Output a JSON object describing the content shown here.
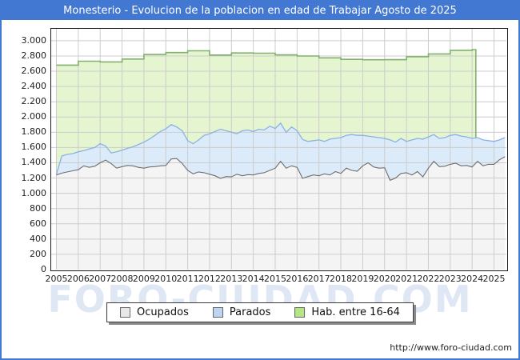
{
  "header": {
    "title": "Monesterio - Evolucion de la poblacion en edad de Trabajar Agosto de 2025"
  },
  "watermark": "FORO-CIUDAD.COM",
  "footer": {
    "url": "http://www.foro-ciudad.com"
  },
  "colors": {
    "frame_border": "#4378d2",
    "titlebar_bg": "#4378d2",
    "titlebar_text": "#ffffff",
    "grid": "#cccccc",
    "plot_border": "#1a1a1a",
    "watermark": "#dfe7f4"
  },
  "legend": {
    "items": [
      {
        "label": "Ocupados",
        "swatch_fill": "#e8e8e8",
        "swatch_border": "#666666"
      },
      {
        "label": "Parados",
        "swatch_fill": "#bcd6f2",
        "swatch_border": "#666666"
      },
      {
        "label": "Hab. entre 16-64",
        "swatch_fill": "#b5e683",
        "swatch_border": "#666666"
      }
    ]
  },
  "chart_data": {
    "type": "area",
    "title": "Monesterio - Evolucion de la poblacion en edad de Trabajar Agosto de 2025",
    "grid": true,
    "legend_position": "bottom-center",
    "x_axis": {
      "tick_labels": [
        "2005",
        "2006",
        "2007",
        "2008",
        "2009",
        "2010",
        "2011",
        "2012",
        "2013",
        "2014",
        "2015",
        "2016",
        "2017",
        "2018",
        "2019",
        "2020",
        "2021",
        "2022",
        "2023",
        "2024",
        "2025"
      ],
      "start": 2005,
      "end": 2025.6
    },
    "y_axis": {
      "min": 0,
      "max": 3000,
      "tick_step": 200,
      "tick_labels_top_down": [
        "3.000",
        "2.800",
        "2.600",
        "2.400",
        "2.200",
        "2.000",
        "1.800",
        "1.600",
        "1.400",
        "1.200",
        "1.000",
        "800",
        "600",
        "400",
        "200",
        "0"
      ]
    },
    "sampling": {
      "x_start": 2005.0,
      "x_step_years": 0.25
    },
    "series": [
      {
        "name": "Ocupados",
        "line_color": "#6e6e6e",
        "fill_color": "#f4f4f4",
        "stacked_on": null,
        "values": [
          1240,
          1265,
          1280,
          1295,
          1310,
          1360,
          1340,
          1355,
          1400,
          1435,
          1390,
          1330,
          1350,
          1365,
          1360,
          1340,
          1330,
          1345,
          1350,
          1360,
          1365,
          1450,
          1455,
          1390,
          1300,
          1255,
          1280,
          1270,
          1250,
          1230,
          1195,
          1220,
          1215,
          1250,
          1230,
          1245,
          1240,
          1260,
          1270,
          1300,
          1330,
          1420,
          1330,
          1360,
          1340,
          1195,
          1220,
          1240,
          1230,
          1255,
          1240,
          1285,
          1260,
          1330,
          1300,
          1290,
          1360,
          1400,
          1345,
          1330,
          1335,
          1170,
          1200,
          1260,
          1270,
          1240,
          1285,
          1215,
          1330,
          1420,
          1350,
          1355,
          1380,
          1395,
          1360,
          1365,
          1345,
          1420,
          1360,
          1380,
          1380,
          1440,
          1480
        ]
      },
      {
        "name": "Parados",
        "line_color": "#8ab2e2",
        "fill_color": "#dcebfa",
        "stacked_on": "Ocupados",
        "values": [
          10,
          225,
          230,
          225,
          235,
          200,
          240,
          245,
          250,
          185,
          140,
          215,
          215,
          225,
          250,
          300,
          340,
          365,
          410,
          450,
          480,
          450,
          415,
          430,
          390,
          395,
          420,
          490,
          530,
          580,
          645,
          600,
          585,
          530,
          590,
          585,
          570,
          580,
          560,
          580,
          520,
          500,
          470,
          510,
          480,
          510,
          460,
          450,
          470,
          425,
          470,
          435,
          470,
          430,
          470,
          470,
          400,
          350,
          395,
          400,
          385,
          530,
          470,
          460,
          410,
          460,
          435,
          495,
          410,
          350,
          370,
          375,
          380,
          375,
          390,
          375,
          375,
          310,
          340,
          310,
          300,
          260,
          250
        ]
      },
      {
        "name": "Hab. entre 16-64",
        "line_color": "#82b06e",
        "fill_color": "#e4f5d0",
        "annual_step": true,
        "last_x": 2024.17,
        "years": [
          2005,
          2006,
          2007,
          2008,
          2009,
          2010,
          2011,
          2012,
          2013,
          2014,
          2015,
          2016,
          2017,
          2018,
          2019,
          2020,
          2021,
          2022,
          2023,
          2024
        ],
        "values": [
          2680,
          2732,
          2722,
          2760,
          2820,
          2845,
          2868,
          2812,
          2840,
          2836,
          2814,
          2800,
          2776,
          2756,
          2750,
          2752,
          2790,
          2827,
          2874,
          2884
        ]
      }
    ]
  }
}
